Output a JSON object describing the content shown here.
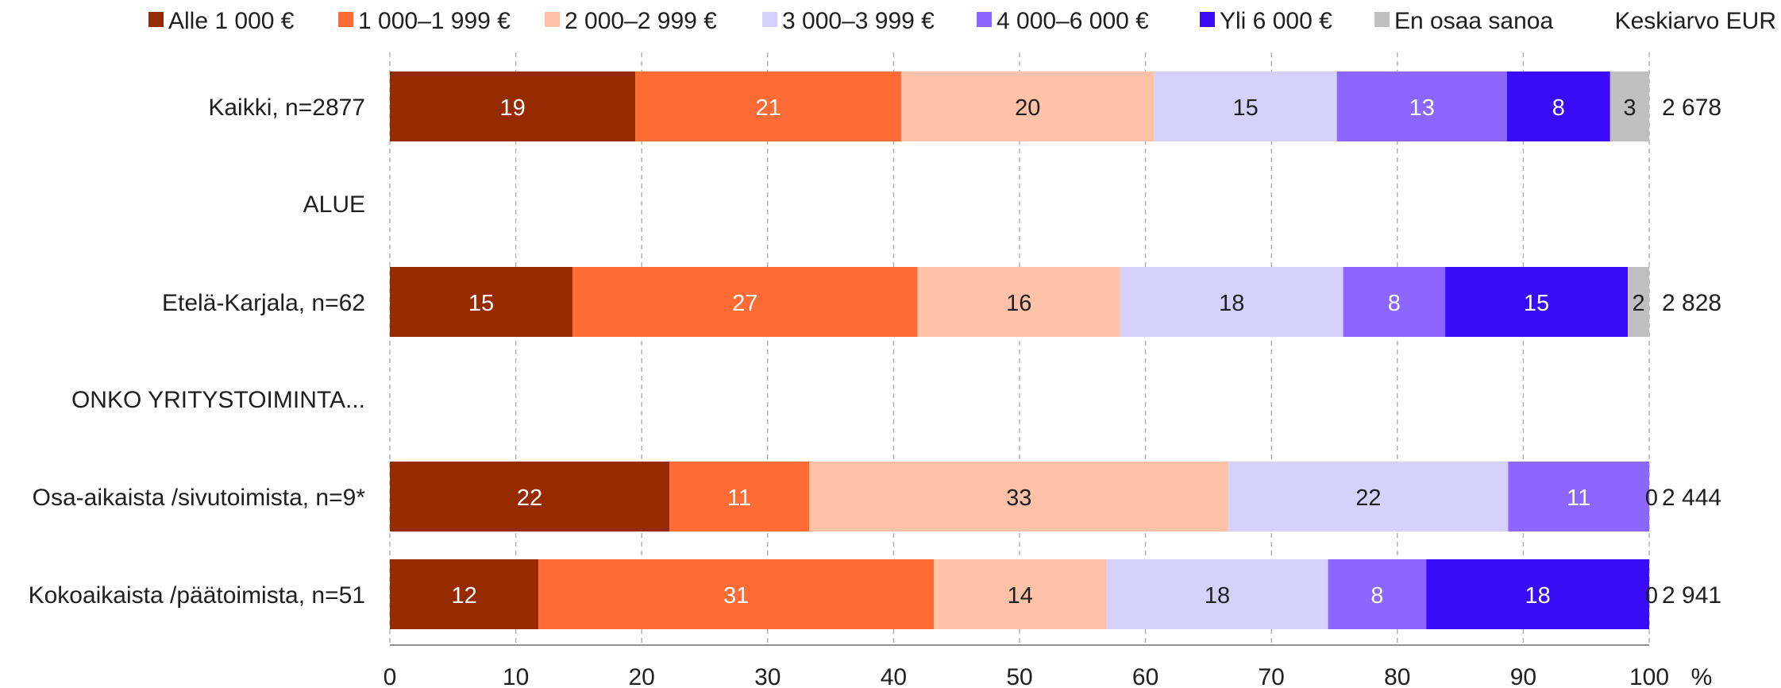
{
  "chart_data": {
    "type": "bar",
    "orientation": "horizontal",
    "stacked": true,
    "title": "",
    "xlabel": "",
    "ylabel": "",
    "x_unit": "%",
    "xlim": [
      0,
      100
    ],
    "xticks": [
      0,
      10,
      20,
      30,
      40,
      50,
      60,
      70,
      80,
      90,
      100
    ],
    "grid": true,
    "legend_position": "top",
    "average_header": "Keskiarvo EUR",
    "series": [
      {
        "name": "Alle 1 000 €",
        "color": "#962b02"
      },
      {
        "name": "1 000–1 999 €",
        "color": "#ff6b35"
      },
      {
        "name": "2 000–2 999 €",
        "color": "#ffc1a8"
      },
      {
        "name": "3 000–3 999 €",
        "color": "#d6d0fc"
      },
      {
        "name": "4 000–6 000 €",
        "color": "#8b66ff"
      },
      {
        "name": "Yli 6 000 €",
        "color": "#3a0bf7"
      },
      {
        "name": "En osaa sanoa",
        "color": "#c0c0c0"
      }
    ],
    "rows": [
      {
        "label": "Kaikki, n=2877",
        "values": [
          19.5,
          21.1,
          20.1,
          14.5,
          13.5,
          8.2,
          3.1
        ],
        "labels": [
          "19",
          "21",
          "20",
          "15",
          "13",
          "8",
          "3"
        ],
        "average": "2 678"
      },
      {
        "label": "ALUE",
        "heading": true
      },
      {
        "label": "Etelä-Karjala, n=62",
        "values": [
          14.5,
          27.4,
          16.1,
          17.7,
          8.1,
          14.5,
          1.7
        ],
        "labels": [
          "15",
          "27",
          "16",
          "18",
          "8",
          "15",
          "2"
        ],
        "average": "2 828"
      },
      {
        "label": "ONKO YRITYSTOIMINTA...",
        "heading": true
      },
      {
        "label": "Osa-aikaista /sivutoimista, n=9*",
        "values": [
          22.2,
          11.1,
          33.3,
          22.2,
          11.2,
          0,
          0
        ],
        "labels": [
          "22",
          "11",
          "33",
          "22",
          "11",
          "",
          "0"
        ],
        "average": "2 444"
      },
      {
        "label": "Kokoaikaista /päätoimista, n=51",
        "values": [
          11.8,
          31.4,
          13.7,
          17.6,
          7.8,
          17.7,
          0
        ],
        "labels": [
          "12",
          "31",
          "14",
          "18",
          "8",
          "18",
          "0"
        ],
        "average": "2 941"
      }
    ]
  }
}
